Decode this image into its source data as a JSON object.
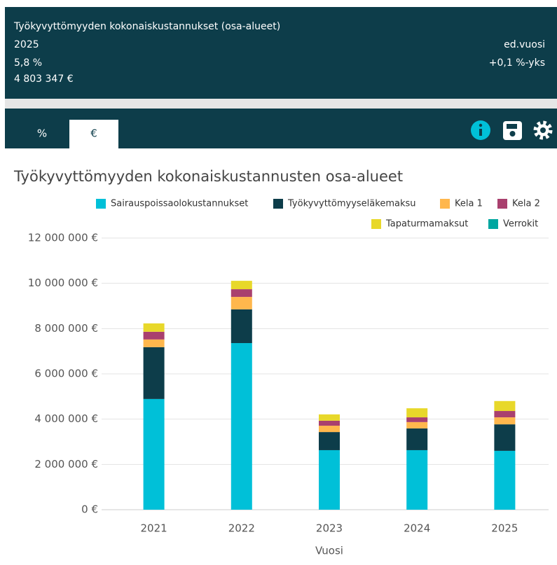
{
  "header": {
    "title": "Työkyvyttömyyden kokonaiskustannukset (osa-alueet)",
    "year": "2025",
    "percent": "5,8 %",
    "amount": "4 803 347 €",
    "compare_label": "ed.vuosi",
    "compare_value": "+0,1 %-yks"
  },
  "tabs": [
    "%",
    "€"
  ],
  "chart_data": {
    "type": "bar",
    "stacked": true,
    "title": "Työkyvyttömyyden kokonaiskustannusten osa-alueet",
    "x_label": "Vuosi",
    "categories": [
      "2021",
      "2022",
      "2023",
      "2024",
      "2025"
    ],
    "series": [
      {
        "name": "Sairauspoissaolokustannukset",
        "color": "#00c0d8",
        "values": [
          4890000,
          7360000,
          2630000,
          2630000,
          2600000
        ]
      },
      {
        "name": "Työkyvyttömyyseläkemaksu",
        "color": "#0d3d4a",
        "values": [
          2290000,
          1490000,
          800000,
          960000,
          1170000
        ]
      },
      {
        "name": "Kela 1",
        "color": "#ffb74d",
        "values": [
          340000,
          550000,
          280000,
          280000,
          310000
        ]
      },
      {
        "name": "Kela 2",
        "color": "#a9406e",
        "values": [
          340000,
          340000,
          220000,
          210000,
          280000
        ]
      },
      {
        "name": "Tapaturmamaksut",
        "color": "#e8d82a",
        "values": [
          370000,
          370000,
          280000,
          400000,
          440000
        ]
      },
      {
        "name": "Verrokit",
        "color": "#00a6a0",
        "values": [
          0,
          0,
          0,
          0,
          0
        ]
      }
    ],
    "ylim": [
      0,
      12000000
    ],
    "yticks": [
      {
        "value": 0,
        "label": "0 €"
      },
      {
        "value": 2000000,
        "label": "2 000 000 €"
      },
      {
        "value": 4000000,
        "label": "4 000 000 €"
      },
      {
        "value": 6000000,
        "label": "6 000 000 €"
      },
      {
        "value": 8000000,
        "label": "8 000 000 €"
      },
      {
        "value": 10000000,
        "label": "10 000 000 €"
      },
      {
        "value": 12000000,
        "label": "12 000 000 €"
      }
    ],
    "grid": true
  }
}
